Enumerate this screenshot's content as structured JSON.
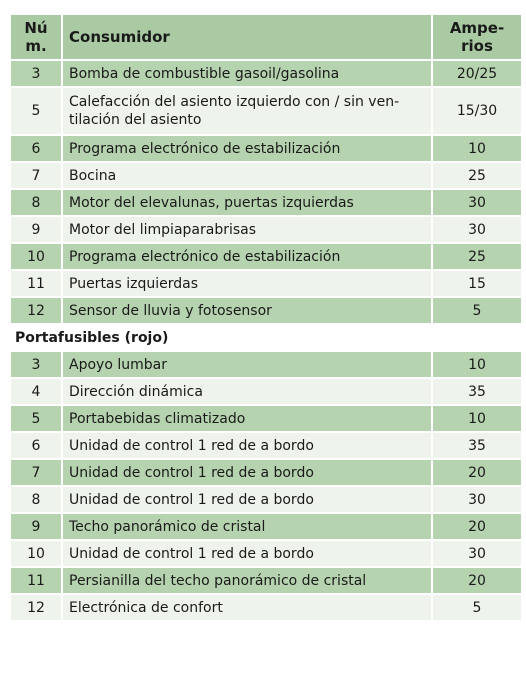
{
  "table": {
    "header": [
      "Nú\nm.",
      "Consumidor",
      "Ampe-\nrios"
    ],
    "rows": [
      [
        3,
        "Bomba de combustible gasoil/gasolina",
        "20/25"
      ],
      [
        5,
        "Calefacción del asiento izquierdo con / sin ven-\ntilación del asiento",
        "15/30"
      ],
      [
        6,
        "Programa electrónico de estabilización",
        10
      ],
      [
        7,
        "Bocina",
        25
      ],
      [
        8,
        "Motor del elevalunas, puertas izquierdas",
        30
      ],
      [
        9,
        "Motor del limpiaparabrisas",
        30
      ],
      [
        10,
        "Programa electrónico de estabilización",
        25
      ],
      [
        11,
        "Puertas izquierdas",
        15
      ],
      [
        12,
        "Sensor de lluvia y fotosensor",
        5
      ]
    ],
    "section": "Portafusibles (rojo)",
    "section_rows": [
      [
        3,
        "Apoyo lumbar",
        10
      ],
      [
        4,
        "Dirección dinámica",
        35
      ],
      [
        5,
        "Portabebidas climatizado",
        10
      ],
      [
        6,
        "Unidad de control 1 red de a bordo",
        35
      ],
      [
        7,
        "Unidad de control 1 red de a bordo",
        20
      ],
      [
        8,
        "Unidad de control 1 red de a bordo",
        30
      ],
      [
        9,
        "Techo panorámico de cristal",
        20
      ],
      [
        10,
        "Unidad de control 1 red de a bordo",
        30
      ],
      [
        11,
        "Persianilla del techo panorámico de cristal",
        20
      ],
      [
        12,
        "Electrónica de confort",
        5
      ]
    ]
  }
}
